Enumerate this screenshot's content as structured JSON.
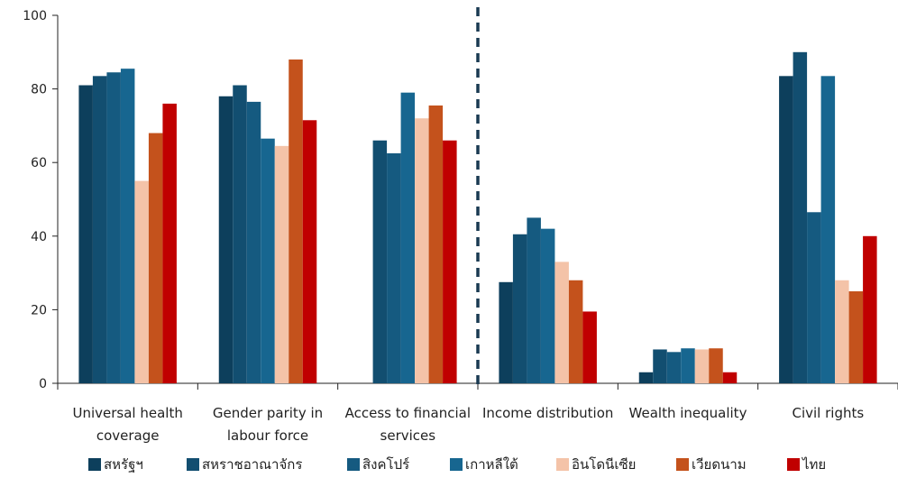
{
  "chart_data": {
    "type": "bar",
    "title": "",
    "xlabel": "",
    "ylabel": "",
    "ylim": [
      0,
      100
    ],
    "yticks": [
      0,
      20,
      40,
      60,
      80,
      100
    ],
    "grid": false,
    "legend_position": "bottom",
    "divider_after_category": 2,
    "categories": [
      [
        "Universal health",
        "coverage"
      ],
      [
        "Gender parity in",
        "labour force"
      ],
      [
        "Access to financial",
        "services"
      ],
      [
        "Income distribution"
      ],
      [
        "Wealth inequality"
      ],
      [
        "Civil rights"
      ]
    ],
    "series": [
      {
        "name": "สหรัฐฯ",
        "color": "#0d3f5c",
        "values": [
          81,
          78,
          null,
          27.5,
          3,
          83.5
        ]
      },
      {
        "name": "สหราชอาณาจักร",
        "color": "#124e70",
        "values": [
          83.5,
          81,
          66,
          40.5,
          9.2,
          90
        ]
      },
      {
        "name": "สิงคโปร์",
        "color": "#155a80",
        "values": [
          84.5,
          76.5,
          62.5,
          45,
          8.5,
          46.5
        ]
      },
      {
        "name": "เกาหลีใต้",
        "color": "#176690",
        "values": [
          85.5,
          66.5,
          79,
          42,
          9.5,
          83.5
        ]
      },
      {
        "name": "อินโดนีเซีย",
        "color": "#f4c3a8",
        "values": [
          55,
          64.5,
          72,
          33,
          9.2,
          28
        ]
      },
      {
        "name": "เวียดนาม",
        "color": "#c4521c",
        "values": [
          68,
          88,
          75.5,
          28,
          9.5,
          25
        ]
      },
      {
        "name": "ไทย",
        "color": "#c00000",
        "values": [
          76,
          71.5,
          66,
          19.5,
          3,
          40
        ]
      }
    ]
  }
}
